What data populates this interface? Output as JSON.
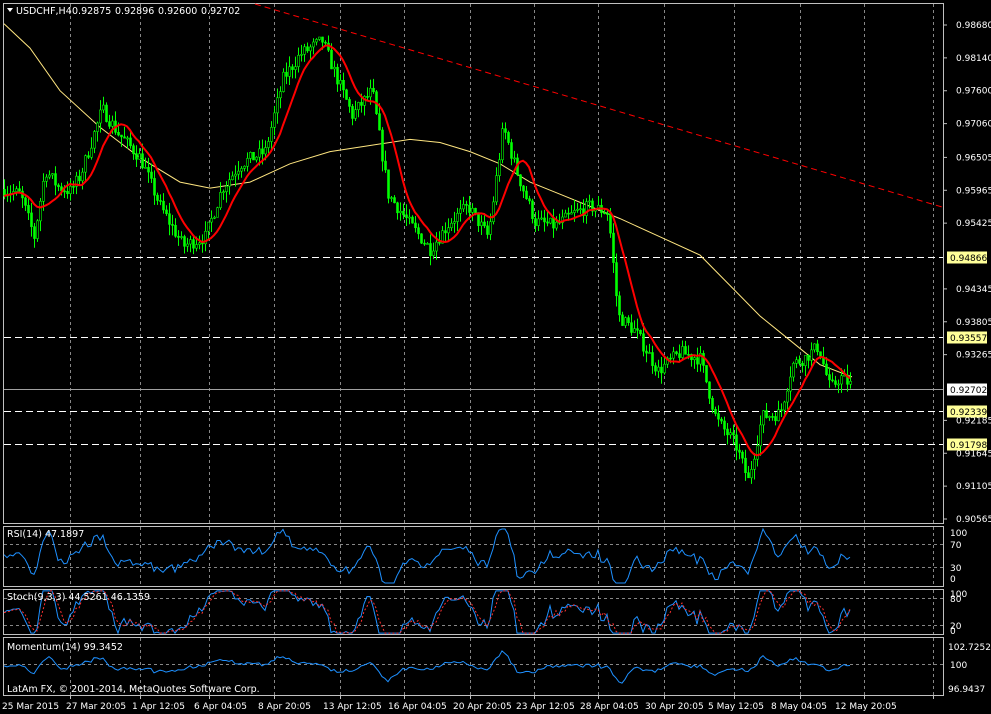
{
  "header": {
    "symbol": "USDCHF,H4",
    "open": "0.92875",
    "high": "0.92896",
    "low": "0.92600",
    "close": "0.92702"
  },
  "copyright": "LatAm FX, © 2001-2014, MetaQuotes Software Corp.",
  "main_axis": {
    "ticks": [
      "0.98680",
      "0.98140",
      "0.97600",
      "0.97060",
      "0.96505",
      "0.95965",
      "0.95425",
      "0.94345",
      "0.93805",
      "0.93265",
      "0.92185",
      "0.91645",
      "0.91105",
      "0.90565"
    ],
    "levels": [
      {
        "label": "0.94866",
        "bg": "#ffff99",
        "style": "dashed"
      },
      {
        "label": "0.93557",
        "bg": "#ffff99",
        "style": "dashed"
      },
      {
        "label": "0.92702",
        "bg": "#ffffff",
        "style": "solid"
      },
      {
        "label": "0.92339",
        "bg": "#ffff99",
        "style": "dashed"
      },
      {
        "label": "0.91798",
        "bg": "#ffff99",
        "style": "dashed"
      }
    ]
  },
  "time_axis": [
    "25 Mar 2015",
    "27 Mar 20:05",
    "1 Apr 12:05",
    "6 Apr 04:05",
    "8 Apr 20:05",
    "13 Apr 12:05",
    "16 Apr 04:05",
    "20 Apr 20:05",
    "23 Apr 12:05",
    "28 Apr 04:05",
    "30 Apr 20:05",
    "5 May 12:05",
    "8 May 04:05",
    "12 May 20:05"
  ],
  "rsi": {
    "title": "RSI(14) 47.1897",
    "ticks": [
      "100",
      "70",
      "30",
      "0"
    ]
  },
  "stoch": {
    "title": "Stoch(9,3,3) 44.5261 46.1359",
    "ticks": [
      "100",
      "80",
      "20",
      "0"
    ]
  },
  "momentum": {
    "title": "Momentum(14) 99.3452",
    "ticks": [
      "102.7252",
      "100",
      "96.9437"
    ]
  },
  "colors": {
    "candles": "#00ff00",
    "ma_fast": "#ff0000",
    "ma_slow": "#ffe680",
    "trendline": "#ff0000",
    "indicator": "#1e90ff",
    "signal": "#ff3030",
    "grid": "#c0c0c0"
  },
  "chart_data": {
    "type": "line",
    "title": "USDCHF,H4",
    "x": [
      "25 Mar 2015",
      "27 Mar 20:05",
      "1 Apr 12:05",
      "6 Apr 04:05",
      "8 Apr 20:05",
      "13 Apr 12:05",
      "16 Apr 04:05",
      "20 Apr 20:05",
      "23 Apr 12:05",
      "28 Apr 04:05",
      "30 Apr 20:05",
      "5 May 12:05",
      "8 May 04:05",
      "12 May 20:05"
    ],
    "ylim": [
      0.9035,
      0.9895
    ],
    "series": [
      {
        "values": [
          0.9598,
          0.9602,
          0.9552,
          0.9632,
          0.9842,
          0.9722,
          0.9528,
          0.9562,
          0.9528,
          0.9502,
          0.9348,
          0.9162,
          0.9322,
          0.9285
        ]
      }
    ]
  }
}
